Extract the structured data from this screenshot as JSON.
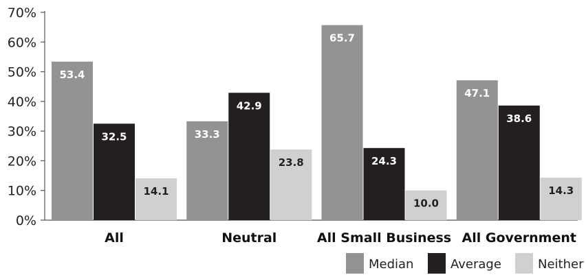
{
  "chart_data": {
    "type": "bar",
    "categories": [
      "All",
      "Neutral",
      "All Small Business",
      "All Government"
    ],
    "series": [
      {
        "name": "Median",
        "values": [
          53.4,
          33.3,
          65.7,
          47.1
        ],
        "color": "#939393",
        "label_color": "#ffffff"
      },
      {
        "name": "Average",
        "values": [
          32.5,
          42.9,
          24.3,
          38.6
        ],
        "color": "#231f20",
        "label_color": "#ffffff"
      },
      {
        "name": "Neither",
        "values": [
          14.1,
          23.8,
          10.0,
          14.3
        ],
        "color": "#d0d0d1",
        "label_color": "#231f20"
      }
    ],
    "value_labels": [
      [
        "53.4",
        "33.3",
        "65.7",
        "47.1"
      ],
      [
        "32.5",
        "42.9",
        "24.3",
        "38.6"
      ],
      [
        "14.1",
        "23.8",
        "10.0",
        "14.3"
      ]
    ],
    "y_ticks": [
      "0%",
      "10%",
      "20%",
      "30%",
      "40%",
      "50%",
      "60%",
      "70%"
    ],
    "ylim": [
      0,
      70
    ],
    "grid": false,
    "legend_position": "bottom-right",
    "title": "",
    "xlabel": "",
    "ylabel": ""
  }
}
